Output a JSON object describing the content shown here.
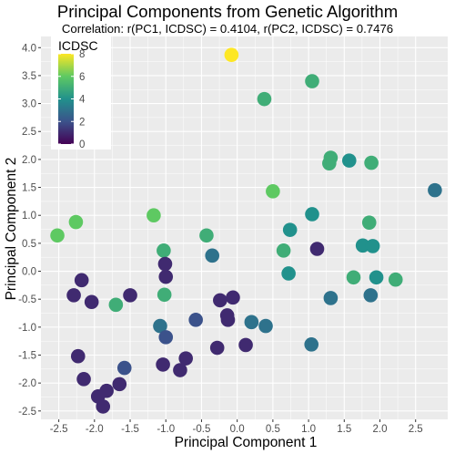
{
  "chart_data": {
    "type": "scatter",
    "title": "Principal Components from Genetic Algorithm",
    "subtitle": "Correlation: r(PC1, ICDSC) = 0.4104, r(PC2, ICDSC) = 0.7476",
    "xlabel": "Principal Component 1",
    "ylabel": "Principal Component 2",
    "xlim": [
      -2.75,
      2.95
    ],
    "ylim": [
      -2.65,
      4.2
    ],
    "x_ticks": [
      "-2.5",
      "-2.0",
      "-1.5",
      "-1.0",
      "-0.5",
      "0.0",
      "0.5",
      "1.0",
      "1.5",
      "2.0",
      "2.5"
    ],
    "y_ticks": [
      "-2.5",
      "-2.0",
      "-1.5",
      "-1.0",
      "-0.5",
      "0.0",
      "0.5",
      "1.0",
      "1.5",
      "2.0",
      "2.5",
      "3.0",
      "3.5",
      "4.0"
    ],
    "grid": true,
    "color_scale": {
      "title": "ICDSC",
      "min": 0,
      "max": 8,
      "ticks": [
        "0",
        "2",
        "4",
        "6",
        "8"
      ],
      "palette": [
        "#440154",
        "#3b528b",
        "#21918c",
        "#5ec962",
        "#fde725"
      ],
      "legend_position": "top-left"
    },
    "points": [
      {
        "x": -0.08,
        "y": 3.87,
        "c": 8
      },
      {
        "x": 1.05,
        "y": 3.4,
        "c": 5
      },
      {
        "x": 0.38,
        "y": 3.08,
        "c": 5
      },
      {
        "x": 2.77,
        "y": 1.45,
        "c": 3
      },
      {
        "x": 1.31,
        "y": 2.03,
        "c": 5
      },
      {
        "x": 1.29,
        "y": 1.93,
        "c": 5
      },
      {
        "x": 1.57,
        "y": 1.98,
        "c": 4
      },
      {
        "x": 1.88,
        "y": 1.94,
        "c": 5
      },
      {
        "x": 0.5,
        "y": 1.43,
        "c": 6
      },
      {
        "x": -1.17,
        "y": 1.0,
        "c": 6
      },
      {
        "x": -2.52,
        "y": 0.64,
        "c": 6
      },
      {
        "x": -2.26,
        "y": 0.88,
        "c": 6
      },
      {
        "x": -0.43,
        "y": 0.64,
        "c": 5
      },
      {
        "x": -1.03,
        "y": 0.37,
        "c": 5
      },
      {
        "x": -0.35,
        "y": 0.28,
        "c": 3
      },
      {
        "x": -1.01,
        "y": 0.13,
        "c": 1
      },
      {
        "x": 0.74,
        "y": 0.74,
        "c": 4
      },
      {
        "x": 1.05,
        "y": 1.02,
        "c": 4
      },
      {
        "x": 0.65,
        "y": 0.37,
        "c": 5
      },
      {
        "x": 1.12,
        "y": 0.4,
        "c": 1
      },
      {
        "x": 1.76,
        "y": 0.46,
        "c": 4
      },
      {
        "x": 1.85,
        "y": 0.87,
        "c": 5
      },
      {
        "x": 1.9,
        "y": 0.45,
        "c": 4
      },
      {
        "x": 0.72,
        "y": -0.04,
        "c": 4
      },
      {
        "x": 1.63,
        "y": -0.11,
        "c": 5
      },
      {
        "x": 1.95,
        "y": -0.11,
        "c": 4
      },
      {
        "x": 2.22,
        "y": -0.15,
        "c": 5
      },
      {
        "x": 1.31,
        "y": -0.48,
        "c": 3
      },
      {
        "x": 1.87,
        "y": -0.43,
        "c": 3
      },
      {
        "x": -1.0,
        "y": -0.1,
        "c": 1
      },
      {
        "x": -2.18,
        "y": -0.16,
        "c": 1
      },
      {
        "x": -2.29,
        "y": -0.43,
        "c": 1
      },
      {
        "x": -2.04,
        "y": -0.55,
        "c": 1
      },
      {
        "x": -1.7,
        "y": -0.6,
        "c": 5
      },
      {
        "x": -1.5,
        "y": -0.43,
        "c": 1
      },
      {
        "x": -1.02,
        "y": -0.42,
        "c": 5
      },
      {
        "x": -0.24,
        "y": -0.52,
        "c": 1
      },
      {
        "x": -0.06,
        "y": -0.47,
        "c": 1
      },
      {
        "x": -0.14,
        "y": -0.79,
        "c": 1
      },
      {
        "x": -0.13,
        "y": -0.87,
        "c": 1
      },
      {
        "x": -0.58,
        "y": -0.87,
        "c": 2
      },
      {
        "x": 0.2,
        "y": -0.91,
        "c": 3
      },
      {
        "x": 0.4,
        "y": -0.98,
        "c": 3
      },
      {
        "x": -1.08,
        "y": -0.98,
        "c": 3
      },
      {
        "x": -1.0,
        "y": -1.18,
        "c": 2
      },
      {
        "x": -0.28,
        "y": -1.37,
        "c": 1
      },
      {
        "x": 0.12,
        "y": -1.32,
        "c": 1
      },
      {
        "x": 1.04,
        "y": -1.31,
        "c": 3
      },
      {
        "x": -2.23,
        "y": -1.52,
        "c": 1
      },
      {
        "x": -0.72,
        "y": -1.56,
        "c": 1
      },
      {
        "x": -0.8,
        "y": -1.77,
        "c": 1
      },
      {
        "x": -1.04,
        "y": -1.67,
        "c": 1
      },
      {
        "x": -1.58,
        "y": -1.73,
        "c": 2
      },
      {
        "x": -2.15,
        "y": -1.93,
        "c": 1
      },
      {
        "x": -1.65,
        "y": -2.02,
        "c": 1
      },
      {
        "x": -1.83,
        "y": -2.14,
        "c": 1
      },
      {
        "x": -1.95,
        "y": -2.24,
        "c": 1
      },
      {
        "x": -1.88,
        "y": -2.42,
        "c": 1
      }
    ]
  }
}
